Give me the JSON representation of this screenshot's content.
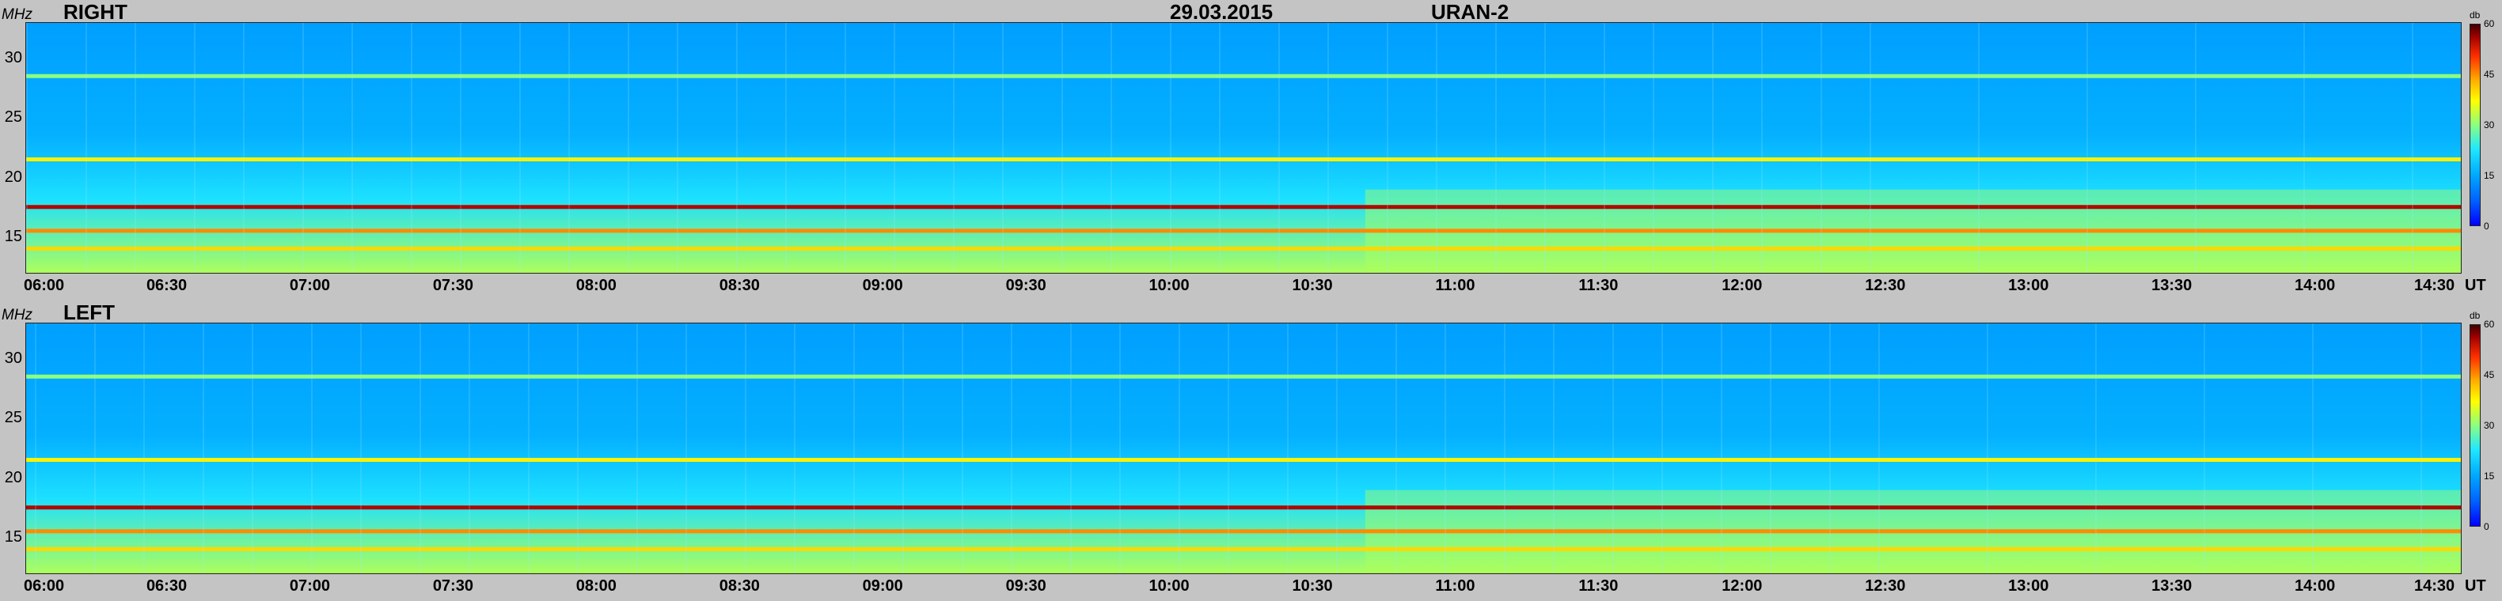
{
  "header": {
    "date": "29.03.2015",
    "instrument": "URAN-2"
  },
  "panels": [
    {
      "label": "RIGHT"
    },
    {
      "label": "LEFT"
    }
  ],
  "axes": {
    "y_unit": "MHz",
    "x_unit": "UT",
    "y_ticks": [
      "30",
      "25",
      "20",
      "15"
    ],
    "x_ticks": [
      "06:00",
      "06:30",
      "07:00",
      "07:30",
      "08:00",
      "08:30",
      "09:00",
      "09:30",
      "10:00",
      "10:30",
      "11:00",
      "11:30",
      "12:00",
      "12:30",
      "13:00",
      "13:30",
      "14:00",
      "14:30"
    ]
  },
  "colorbar": {
    "unit": "db",
    "ticks": [
      "60",
      "45",
      "30",
      "15",
      "0"
    ]
  },
  "chart_data": [
    {
      "type": "heatmap",
      "title": "RIGHT",
      "xlabel": "UT",
      "ylabel": "MHz",
      "x_range": [
        "06:00",
        "14:30"
      ],
      "y_range_mhz": [
        12,
        33
      ],
      "color_range_db": [
        0,
        60
      ],
      "bands": [
        {
          "freq_mhz": 28.5,
          "db": 30
        },
        {
          "freq_mhz": 21.5,
          "db": 38
        },
        {
          "freq_mhz": 17.5,
          "db": 55
        },
        {
          "freq_mhz": 15.5,
          "db": 45
        },
        {
          "freq_mhz": 14.0,
          "db": 40
        }
      ]
    },
    {
      "type": "heatmap",
      "title": "LEFT",
      "xlabel": "UT",
      "ylabel": "MHz",
      "x_range": [
        "06:00",
        "14:30"
      ],
      "y_range_mhz": [
        12,
        33
      ],
      "color_range_db": [
        0,
        60
      ],
      "bands": [
        {
          "freq_mhz": 28.5,
          "db": 30
        },
        {
          "freq_mhz": 21.5,
          "db": 38
        },
        {
          "freq_mhz": 17.5,
          "db": 55
        },
        {
          "freq_mhz": 15.5,
          "db": 45
        },
        {
          "freq_mhz": 14.0,
          "db": 40
        }
      ]
    }
  ]
}
